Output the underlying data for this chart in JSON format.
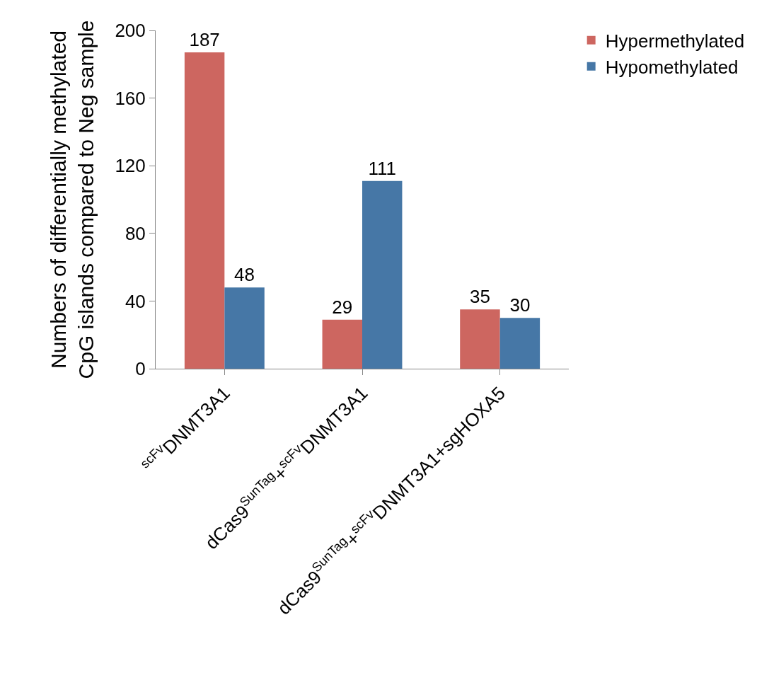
{
  "chart_data": {
    "type": "bar",
    "ylabel": "Numbers of differentially methylated\nCpG islands compared to Neg sample",
    "categories": [
      "$^{scFv}$DNMT3A1",
      "dCas9$^{SunTag}$+$^{scFv}$DNMT3A1",
      "dCas9$^{SunTag}$+$^{scFv}$DNMT3A1+sgHOXA5"
    ],
    "series": [
      {
        "name": "Hypermethylated",
        "color": "#cd6660",
        "values": [
          187,
          29,
          35
        ]
      },
      {
        "name": "Hypomethylated",
        "color": "#4677a6",
        "values": [
          48,
          111,
          30
        ]
      }
    ],
    "ylim": [
      0,
      200
    ],
    "yticks": [
      0,
      40,
      80,
      120,
      160,
      200
    ],
    "grid": false,
    "legend": "top right",
    "data_labels": true
  }
}
